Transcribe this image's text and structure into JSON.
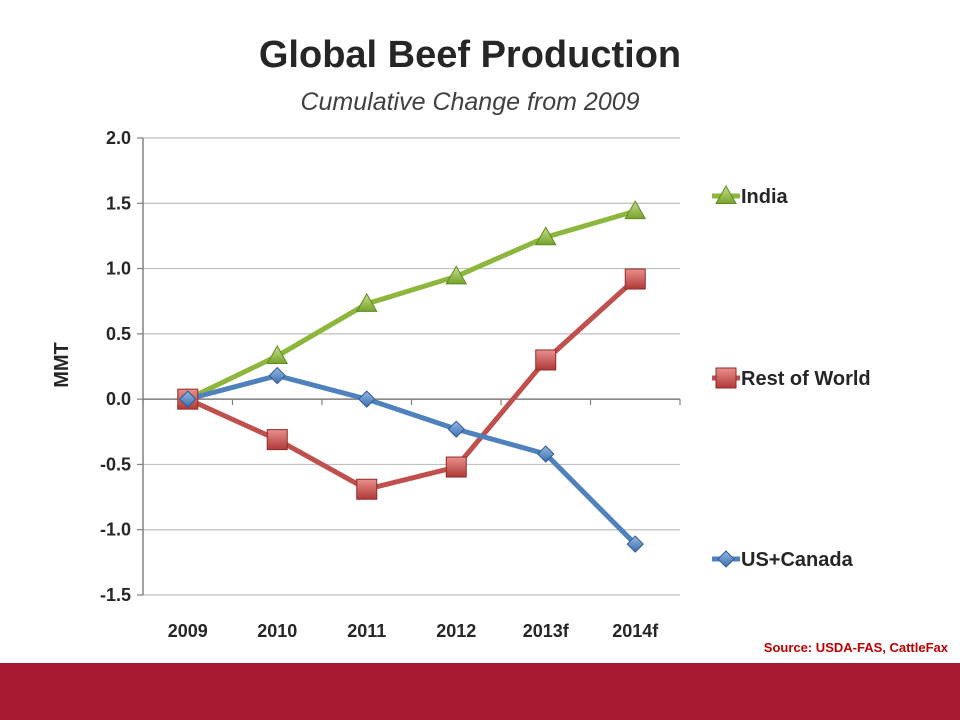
{
  "slide": {
    "source": "Source: USDA-FAS, CattleFax"
  },
  "colors": {
    "footer_bar": "#a6192e",
    "gridline": "#bfbfbf"
  },
  "chart_data": {
    "type": "line",
    "title": "Global Beef Production",
    "subtitle": "Cumulative Change from 2009",
    "xlabel": "",
    "ylabel": "MMT",
    "categories": [
      "2009",
      "2010",
      "2011",
      "2012",
      "2013f",
      "2014f"
    ],
    "ylim": [
      -1.5,
      2.0
    ],
    "yticks": [
      "2.0",
      "1.5",
      "1.0",
      "0.5",
      "0.0",
      "-0.5",
      "-1.0",
      "-1.5"
    ],
    "ytick_values": [
      2.0,
      1.5,
      1.0,
      0.5,
      0.0,
      -0.5,
      -1.0,
      -1.5
    ],
    "grid": true,
    "legend_position": "right",
    "series": [
      {
        "name": "India",
        "color": "#8db63c",
        "marker": "triangle",
        "values": [
          0.0,
          0.33,
          0.73,
          0.94,
          1.24,
          1.44
        ]
      },
      {
        "name": "Rest of World",
        "color": "#c0504d",
        "marker": "square",
        "values": [
          0.0,
          -0.31,
          -0.69,
          -0.52,
          0.3,
          0.92
        ]
      },
      {
        "name": "US+Canada",
        "color": "#4f81bd",
        "marker": "diamond",
        "values": [
          0.0,
          0.18,
          0.0,
          -0.23,
          -0.42,
          -1.11
        ]
      }
    ]
  }
}
